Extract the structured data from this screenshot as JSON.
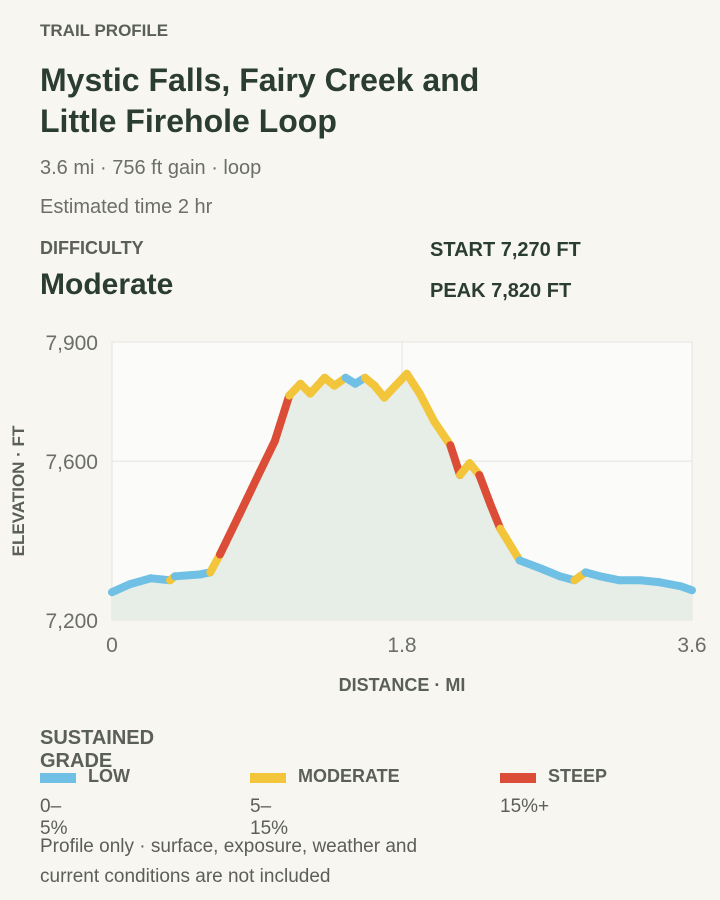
{
  "header": {
    "eyebrow": "TRAIL PROFILE",
    "title": "Mystic Falls, Fairy Creek and Little Firehole Loop",
    "summary": "3.6 mi · 756 ft gain · loop",
    "time": "Estimated time 2 hr"
  },
  "difficulty": {
    "label": "DIFFICULTY",
    "value": "Moderate"
  },
  "stats": [
    "START 7,270 FT",
    "PEAK 7,820 FT"
  ],
  "chart_data": {
    "type": "line",
    "x_label": "DISTANCE · MI",
    "y_label": "ELEVATION · FT",
    "x": [
      0,
      0.11,
      0.24,
      0.36,
      0.39,
      0.55,
      0.61,
      0.67,
      0.79,
      0.92,
      1.01,
      1.1,
      1.17,
      1.23,
      1.32,
      1.38,
      1.45,
      1.51,
      1.57,
      1.63,
      1.69,
      1.76,
      1.83,
      1.91,
      2.0,
      2.1,
      2.16,
      2.22,
      2.28,
      2.35,
      2.41,
      2.53,
      2.66,
      2.78,
      2.87,
      2.94,
      3.03,
      3.15,
      3.28,
      3.4,
      3.53,
      3.6
    ],
    "series": [
      {
        "values": [
          7270,
          7290,
          7305,
          7300,
          7310,
          7315,
          7320,
          7365,
          7465,
          7575,
          7650,
          7765,
          7795,
          7770,
          7810,
          7790,
          7810,
          7795,
          7810,
          7790,
          7760,
          7790,
          7820,
          7770,
          7700,
          7640,
          7565,
          7595,
          7565,
          7490,
          7430,
          7350,
          7330,
          7310,
          7300,
          7320,
          7310,
          7300,
          7300,
          7295,
          7285,
          7275
        ]
      }
    ],
    "xlim": [
      0,
      3.6
    ],
    "xticks": [
      0,
      1.8,
      3.6
    ],
    "ylim": [
      7200,
      7900
    ],
    "yticks": [
      {
        "value": 7200,
        "label": "7,200"
      },
      {
        "value": 7600,
        "label": "7,600"
      },
      {
        "value": 7900,
        "label": "7,900"
      }
    ],
    "grid": true,
    "area_color": "#e6eee7"
  },
  "legend": {
    "title": "SUSTAINED GRADE",
    "items": [
      {
        "name": "LOW",
        "range": "0–5%",
        "min": 0,
        "max": 5,
        "color": "#6fc0e4"
      },
      {
        "name": "MODERATE",
        "range": "5–15%",
        "min": 5,
        "max": 15,
        "color": "#f2c53a"
      },
      {
        "name": "STEEP",
        "range": "15%+",
        "min": 15,
        "color": "#dc4d37"
      }
    ]
  },
  "footnote": "Profile only · surface, exposure, weather and current conditions are not included"
}
